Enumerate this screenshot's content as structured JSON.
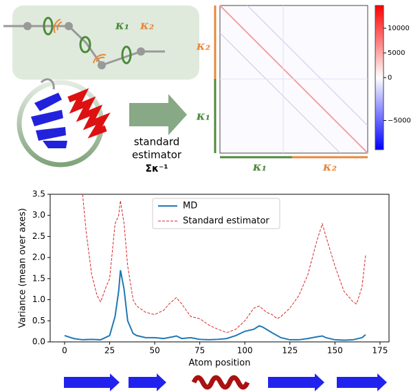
{
  "diagram": {
    "kappa1": "κ₁",
    "kappa2": "κ₂",
    "arrow_text": [
      "standard",
      "estimator"
    ],
    "arrow_symbol": "Σκ⁻¹"
  },
  "heatmap": {
    "row_labels": [
      "κ₂",
      "κ₁"
    ],
    "col_labels": [
      "κ₁",
      "κ₂"
    ],
    "clim": [
      -8400,
      14600
    ],
    "cticks": [
      {
        "value": -5000,
        "label": "−5000"
      },
      0,
      5000,
      10000
    ]
  },
  "chart_data": {
    "type": "line",
    "xlabel": "Atom position",
    "ylabel": "Variance (mean over axes)",
    "xlim": [
      -8,
      180
    ],
    "ylim": [
      0,
      3.5
    ],
    "xticks": [
      0,
      25,
      50,
      75,
      100,
      125,
      150,
      175
    ],
    "yticks": [
      {
        "value": 0,
        "label": "0.0"
      },
      {
        "value": 0.5,
        "label": "0.5"
      },
      {
        "value": 1,
        "label": "1.0"
      },
      {
        "value": 1.5,
        "label": "1.5"
      },
      {
        "value": 2,
        "label": "2.0"
      },
      {
        "value": 2.5,
        "label": "2.5"
      },
      {
        "value": 3,
        "label": "3.0"
      },
      {
        "value": 3.5,
        "label": "3.5"
      }
    ],
    "legend": "upper center",
    "series": [
      {
        "name": "MD",
        "color": "#1f77b4",
        "dashed": false,
        "x": [
          0,
          5,
          10,
          15,
          20,
          25,
          28,
          30,
          31,
          33,
          35,
          38,
          40,
          45,
          50,
          55,
          60,
          62,
          65,
          70,
          75,
          80,
          85,
          90,
          95,
          100,
          105,
          108,
          110,
          115,
          120,
          125,
          130,
          135,
          140,
          143,
          145,
          150,
          155,
          160,
          165,
          167
        ],
        "values": [
          0.15,
          0.08,
          0.05,
          0.06,
          0.05,
          0.15,
          0.6,
          1.2,
          1.7,
          1.25,
          0.5,
          0.2,
          0.15,
          0.1,
          0.1,
          0.08,
          0.12,
          0.14,
          0.08,
          0.1,
          0.06,
          0.05,
          0.06,
          0.08,
          0.15,
          0.25,
          0.3,
          0.38,
          0.35,
          0.22,
          0.1,
          0.05,
          0.05,
          0.08,
          0.12,
          0.14,
          0.1,
          0.05,
          0.04,
          0.05,
          0.1,
          0.17
        ]
      },
      {
        "name": "Standard estimator",
        "color": "#d62728",
        "dashed": true,
        "x": [
          10,
          12,
          15,
          18,
          20,
          23,
          25,
          28,
          30,
          31,
          33,
          35,
          38,
          40,
          45,
          50,
          55,
          58,
          62,
          65,
          70,
          75,
          80,
          85,
          90,
          95,
          100,
          105,
          108,
          112,
          115,
          118,
          120,
          125,
          130,
          135,
          140,
          143,
          145,
          150,
          155,
          160,
          162,
          165,
          167
        ],
        "values": [
          3.5,
          2.6,
          1.6,
          1.1,
          0.95,
          1.3,
          1.5,
          2.8,
          3.0,
          3.35,
          2.8,
          1.8,
          1.0,
          0.85,
          0.7,
          0.65,
          0.75,
          0.9,
          1.05,
          0.9,
          0.6,
          0.55,
          0.4,
          0.3,
          0.22,
          0.3,
          0.5,
          0.8,
          0.85,
          0.7,
          0.65,
          0.55,
          0.6,
          0.8,
          1.1,
          1.6,
          2.4,
          2.8,
          2.5,
          1.8,
          1.2,
          0.95,
          0.9,
          1.3,
          2.05
        ]
      }
    ]
  }
}
